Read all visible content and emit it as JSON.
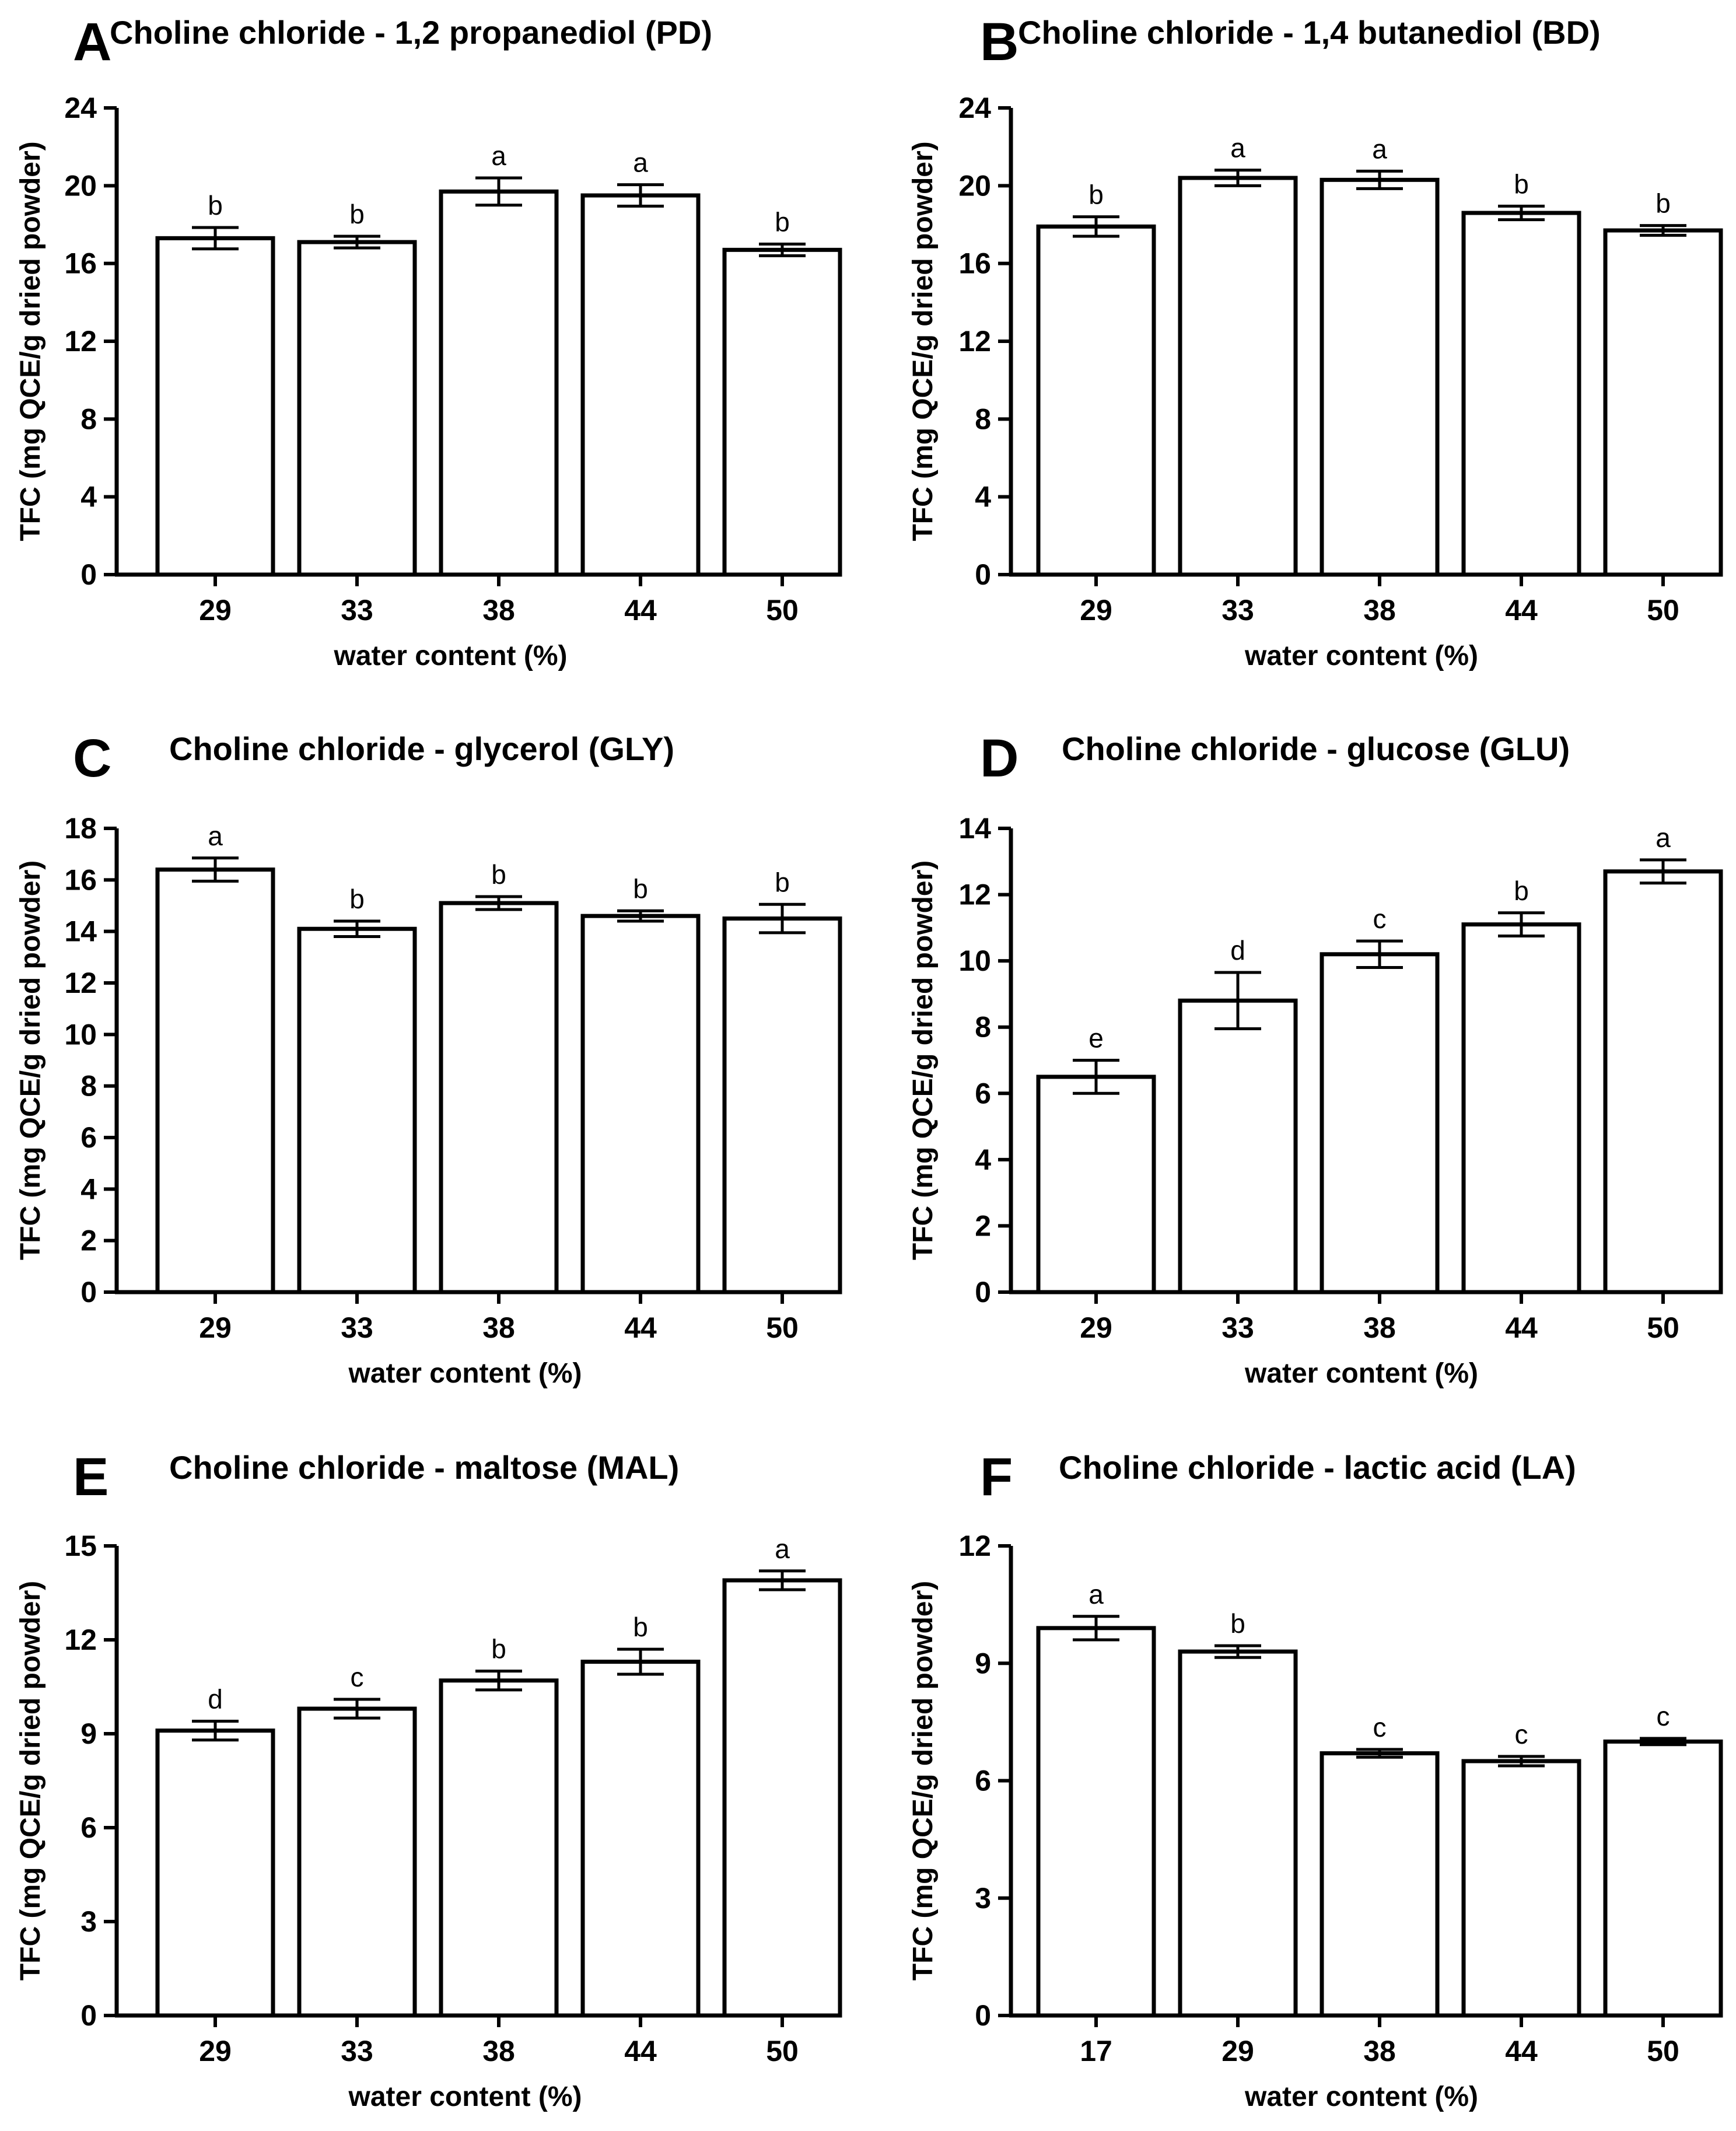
{
  "chart_data": [
    {
      "type": "bar",
      "panel": "A",
      "title": "Choline chloride - 1,2 propanediol (PD)",
      "xlabel": "water content (%)",
      "ylabel": "TFC (mg QCE/g dried powder)",
      "categories": [
        "29",
        "33",
        "38",
        "44",
        "50"
      ],
      "values": [
        17.3,
        17.1,
        19.7,
        19.5,
        16.7
      ],
      "errors": [
        0.55,
        0.3,
        0.7,
        0.55,
        0.3
      ],
      "significance": [
        "b",
        "b",
        "a",
        "a",
        "b"
      ],
      "ylim": [
        0,
        24
      ],
      "yticks": [
        0,
        4,
        8,
        12,
        16,
        20,
        24
      ]
    },
    {
      "type": "bar",
      "panel": "B",
      "title": "Choline chloride - 1,4 butanediol (BD)",
      "xlabel": "water content (%)",
      "ylabel": "TFC (mg QCE/g dried powder)",
      "categories": [
        "29",
        "33",
        "38",
        "44",
        "50"
      ],
      "values": [
        17.9,
        20.4,
        20.3,
        18.6,
        17.7
      ],
      "errors": [
        0.5,
        0.4,
        0.45,
        0.35,
        0.25
      ],
      "significance": [
        "b",
        "a",
        "a",
        "b",
        "b"
      ],
      "ylim": [
        0,
        24
      ],
      "yticks": [
        0,
        4,
        8,
        12,
        16,
        20,
        24
      ]
    },
    {
      "type": "bar",
      "panel": "C",
      "title": "Choline chloride - glycerol (GLY)",
      "xlabel": "water content (%)",
      "ylabel": "TFC (mg QCE/g dried powder)",
      "categories": [
        "29",
        "33",
        "38",
        "44",
        "50"
      ],
      "values": [
        16.4,
        14.1,
        15.1,
        14.6,
        14.5
      ],
      "errors": [
        0.45,
        0.3,
        0.25,
        0.2,
        0.55
      ],
      "significance": [
        "a",
        "b",
        "b",
        "b",
        "b"
      ],
      "ylim": [
        0,
        18
      ],
      "yticks": [
        0,
        2,
        4,
        6,
        8,
        10,
        12,
        14,
        16,
        18
      ]
    },
    {
      "type": "bar",
      "panel": "D",
      "title": "Choline chloride - glucose (GLU)",
      "xlabel": "water content (%)",
      "ylabel": "TFC (mg QCE/g dried powder)",
      "categories": [
        "29",
        "33",
        "38",
        "44",
        "50"
      ],
      "values": [
        6.5,
        8.8,
        10.2,
        11.1,
        12.7
      ],
      "errors": [
        0.5,
        0.85,
        0.4,
        0.35,
        0.35
      ],
      "significance": [
        "e",
        "d",
        "c",
        "b",
        "a"
      ],
      "ylim": [
        0,
        14
      ],
      "yticks": [
        0,
        2,
        4,
        6,
        8,
        10,
        12,
        14
      ]
    },
    {
      "type": "bar",
      "panel": "E",
      "title": "Choline chloride - maltose (MAL)",
      "xlabel": "water content (%)",
      "ylabel": "TFC (mg QCE/g dried powder)",
      "categories": [
        "29",
        "33",
        "38",
        "44",
        "50"
      ],
      "values": [
        9.1,
        9.8,
        10.7,
        11.3,
        13.9
      ],
      "errors": [
        0.3,
        0.3,
        0.3,
        0.4,
        0.3
      ],
      "significance": [
        "d",
        "c",
        "b",
        "b",
        "a"
      ],
      "ylim": [
        0,
        15
      ],
      "yticks": [
        0,
        3,
        6,
        9,
        12,
        15
      ]
    },
    {
      "type": "bar",
      "panel": "F",
      "title": "Choline chloride - lactic acid (LA)",
      "xlabel": "water content (%)",
      "ylabel": "TFC (mg QCE/g dried powder)",
      "categories": [
        "17",
        "29",
        "38",
        "44",
        "50"
      ],
      "values": [
        9.9,
        9.3,
        6.7,
        6.5,
        7.0
      ],
      "errors": [
        0.3,
        0.15,
        0.1,
        0.12,
        0.08
      ],
      "significance": [
        "a",
        "b",
        "c",
        "c",
        "c"
      ],
      "ylim": [
        0,
        12
      ],
      "yticks": [
        0,
        3,
        6,
        9,
        12
      ]
    }
  ]
}
